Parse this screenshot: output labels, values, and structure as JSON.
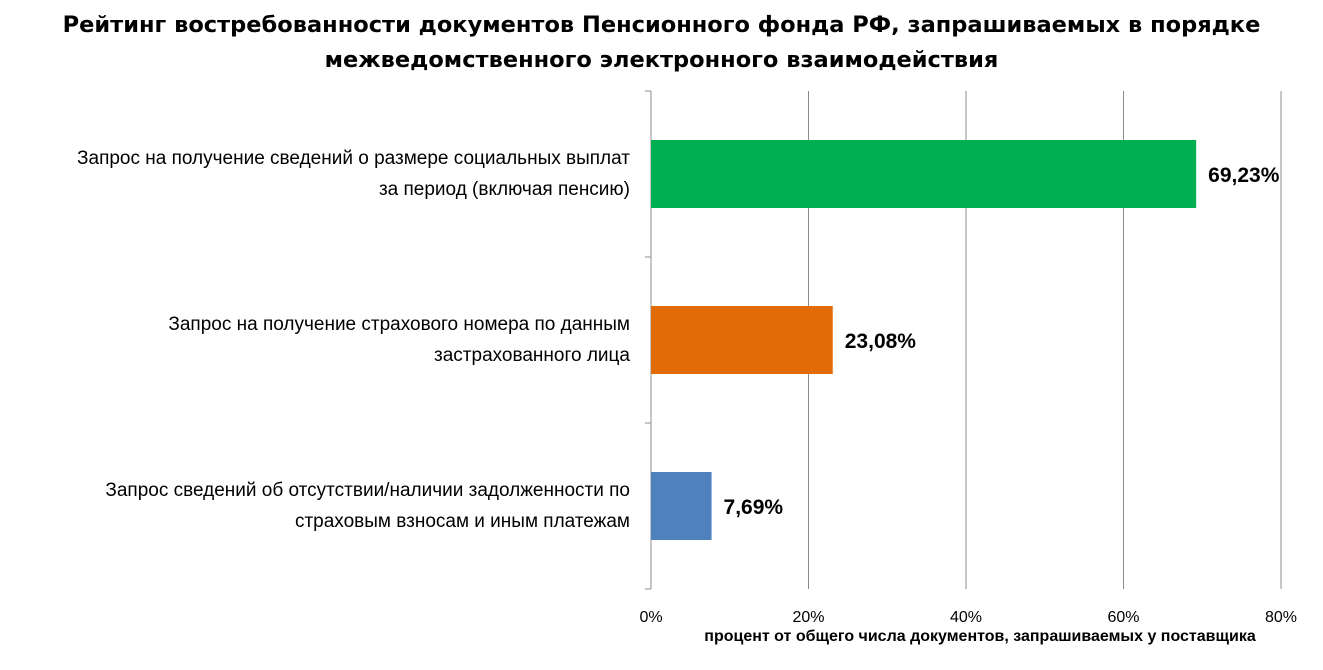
{
  "title": {
    "line1": "Рейтинг востребованности документов Пенсионного фонда РФ, запрашиваемых в порядке",
    "line2": "межведомственного электронного взаимодействия"
  },
  "chart_data": {
    "type": "bar",
    "orientation": "horizontal",
    "title": "Рейтинг востребованности документов Пенсионного фонда РФ, запрашиваемых в порядке межведомственного электронного взаимодействия",
    "xlabel": "процент от общего числа документов, запрашиваемых у поставщика",
    "ylabel": "",
    "xlim": [
      0,
      80
    ],
    "xticks": [
      "0%",
      "20%",
      "40%",
      "60%",
      "80%"
    ],
    "grid": "vertical",
    "categories": [
      {
        "lines": [
          "Запрос на получение сведений о размере социальных выплат",
          "за период (включая пенсию)"
        ],
        "value": 69.23,
        "label": "69,23%",
        "color": "#00b050"
      },
      {
        "lines": [
          "Запрос на получение страхового номера по данным",
          "застрахованного лица"
        ],
        "value": 23.08,
        "label": "23,08%",
        "color": "#e36c09"
      },
      {
        "lines": [
          "Запрос сведений об отсутствии/наличии задолженности по",
          "страховым взносам и иным платежам"
        ],
        "value": 7.69,
        "label": "7,69%",
        "color": "#4f81bd"
      }
    ]
  }
}
